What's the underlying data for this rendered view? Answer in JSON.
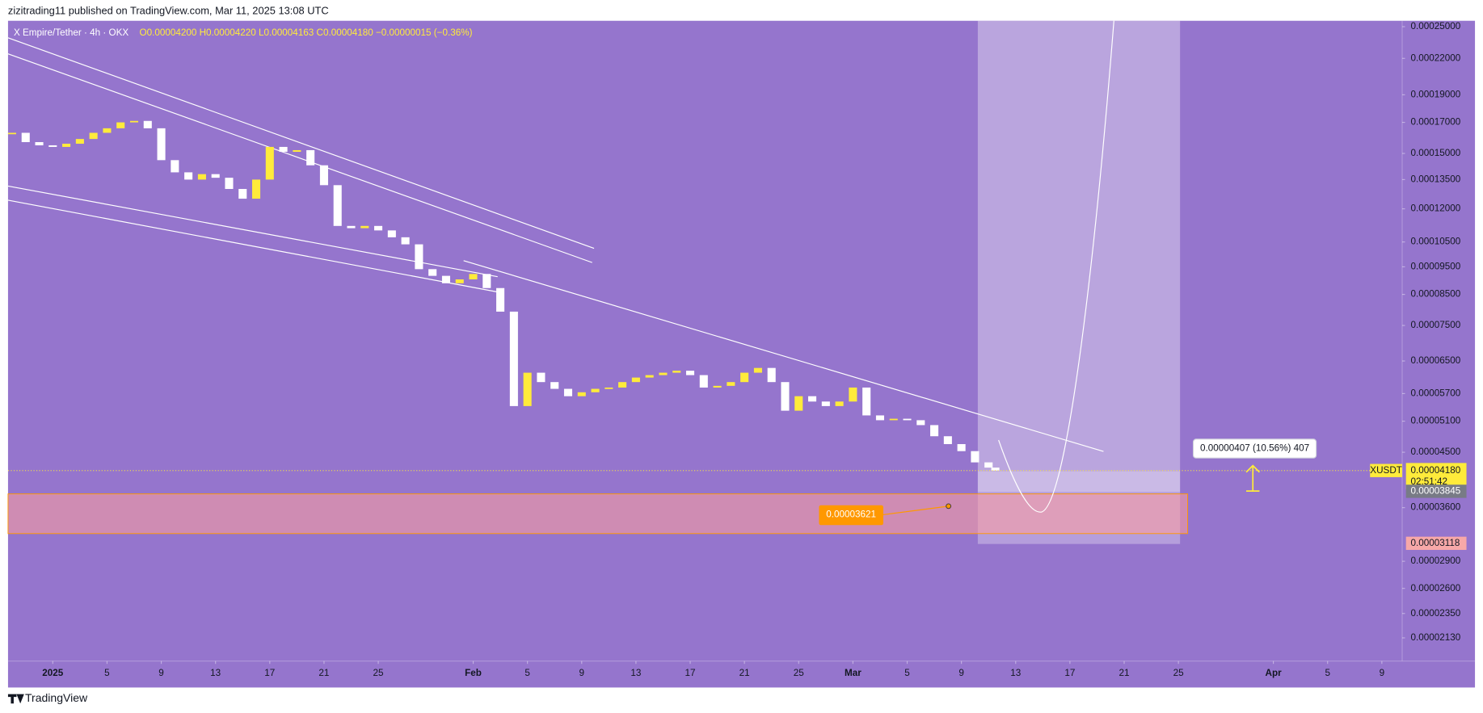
{
  "header": "zizitrading11 published on TradingView.com, Mar 11, 2025 13:08 UTC",
  "footer": "TradingView",
  "chart_data": {
    "type": "candlestick",
    "symbol": "X Empire/Tether · 4h · OKX",
    "ohlc": "O0.00004200 H0.00004220 L0.00004163 C0.00004180 −0.00000015 (−0.36%)",
    "log_scale": true,
    "background": "#9575cd",
    "up_color": "#ffeb3b",
    "down_color": "#ffffff",
    "xlim": [
      -3.3,
      99.5
    ],
    "ylim": [
      1.94e-05,
      0.000256
    ],
    "xticks": [
      {
        "value": 0,
        "label": "2025"
      },
      {
        "value": 4,
        "label": "5"
      },
      {
        "value": 8,
        "label": "9"
      },
      {
        "value": 12,
        "label": "13"
      },
      {
        "value": 16,
        "label": "17"
      },
      {
        "value": 20,
        "label": "21"
      },
      {
        "value": 24,
        "label": "25"
      },
      {
        "value": 31,
        "label": "Feb"
      },
      {
        "value": 35,
        "label": "5"
      },
      {
        "value": 39,
        "label": "9"
      },
      {
        "value": 43,
        "label": "13"
      },
      {
        "value": 47,
        "label": "17"
      },
      {
        "value": 51,
        "label": "21"
      },
      {
        "value": 55,
        "label": "25"
      },
      {
        "value": 59,
        "label": "Mar"
      },
      {
        "value": 63,
        "label": "5"
      },
      {
        "value": 67,
        "label": "9"
      },
      {
        "value": 71,
        "label": "13"
      },
      {
        "value": 75,
        "label": "17"
      },
      {
        "value": 79,
        "label": "21"
      },
      {
        "value": 83,
        "label": "25"
      },
      {
        "value": 90,
        "label": "Apr"
      },
      {
        "value": 94,
        "label": "5"
      },
      {
        "value": 98,
        "label": "9"
      }
    ],
    "yticks": [
      {
        "value": 0.00025,
        "label": "0.00025000"
      },
      {
        "value": 0.00022,
        "label": "0.00022000"
      },
      {
        "value": 0.00019,
        "label": "0.00019000"
      },
      {
        "value": 0.00017,
        "label": "0.00017000"
      },
      {
        "value": 0.00015,
        "label": "0.00015000"
      },
      {
        "value": 0.000135,
        "label": "0.00013500"
      },
      {
        "value": 0.00012,
        "label": "0.00012000"
      },
      {
        "value": 0.000105,
        "label": "0.00010500"
      },
      {
        "value": 9.5e-05,
        "label": "0.00009500"
      },
      {
        "value": 8.5e-05,
        "label": "0.00008500"
      },
      {
        "value": 7.5e-05,
        "label": "0.00007500"
      },
      {
        "value": 6.5e-05,
        "label": "0.00006500"
      },
      {
        "value": 5.7e-05,
        "label": "0.00005700"
      },
      {
        "value": 5.1e-05,
        "label": "0.00005100"
      },
      {
        "value": 4.5e-05,
        "label": "0.00004500"
      },
      {
        "value": 3.6e-05,
        "label": "0.00003600"
      },
      {
        "value": 2.9e-05,
        "label": "0.00002900"
      },
      {
        "value": 2.6e-05,
        "label": "0.00002600"
      },
      {
        "value": 2.35e-05,
        "label": "0.00002350"
      },
      {
        "value": 2.13e-05,
        "label": "0.00002130"
      }
    ],
    "x": [
      -3,
      -2,
      -1,
      0,
      1,
      2,
      3,
      4,
      5,
      6,
      7,
      8,
      9,
      10,
      11,
      12,
      13,
      14,
      15,
      16,
      17,
      18,
      19,
      20,
      21,
      22,
      23,
      24,
      25,
      26,
      27,
      28,
      29,
      30,
      31,
      32,
      33,
      34,
      35,
      36,
      37,
      38,
      39,
      40,
      41,
      42,
      43,
      44,
      45,
      46,
      47,
      48,
      49,
      50,
      51,
      52,
      53,
      54,
      55,
      56,
      57,
      58,
      59,
      60,
      61,
      62,
      63,
      64,
      65,
      66,
      67,
      68,
      69,
      69.5
    ],
    "values": [
      0.000163,
      0.000157,
      0.000155,
      0.000154,
      0.000156,
      0.000159,
      0.000163,
      0.000166,
      0.00017,
      0.000171,
      0.000166,
      0.000146,
      0.000139,
      0.000135,
      0.000138,
      0.000136,
      0.00013,
      0.000125,
      0.000135,
      0.000154,
      0.000151,
      0.000152,
      0.000143,
      0.000132,
      0.000112,
      0.000111,
      0.000112,
      0.00011,
      0.000107,
      0.000104,
      9.41e-05,
      9.16e-05,
      8.89e-05,
      9.03e-05,
      9.23e-05,
      8.72e-05,
      7.93e-05,
      5.42e-05,
      6.2e-05,
      5.97e-05,
      5.81e-05,
      5.64e-05,
      5.73e-05,
      5.81e-05,
      5.84e-05,
      5.97e-05,
      6.08e-05,
      6.14e-05,
      6.2e-05,
      6.25e-05,
      6.14e-05,
      5.84e-05,
      5.88e-05,
      5.97e-05,
      6.2e-05,
      6.32e-05,
      5.97e-05,
      5.32e-05,
      5.64e-05,
      5.52e-05,
      5.42e-05,
      5.52e-05,
      5.84e-05,
      5.22e-05,
      5.12e-05,
      5.15e-05,
      5.12e-05,
      5.02e-05,
      4.8e-05,
      4.65e-05,
      4.52e-05,
      4.32e-05,
      4.23e-05,
      4.18e-05
    ],
    "last_price": {
      "value": 4.18e-05,
      "label": "0.00004180"
    },
    "countdown": "02:51:42",
    "symbol_tag": "XUSDT",
    "level_labels": [
      {
        "value": 3.845e-05,
        "label": "0.00003845",
        "color": "#787b86"
      },
      {
        "value": 3.118e-05,
        "label": "0.00003118",
        "color": "#f7a8a8"
      }
    ],
    "annotation": {
      "value": 3.621e-05,
      "label": "0.00003621"
    },
    "measure_label": "0.00000407 (10.56%) 407"
  }
}
